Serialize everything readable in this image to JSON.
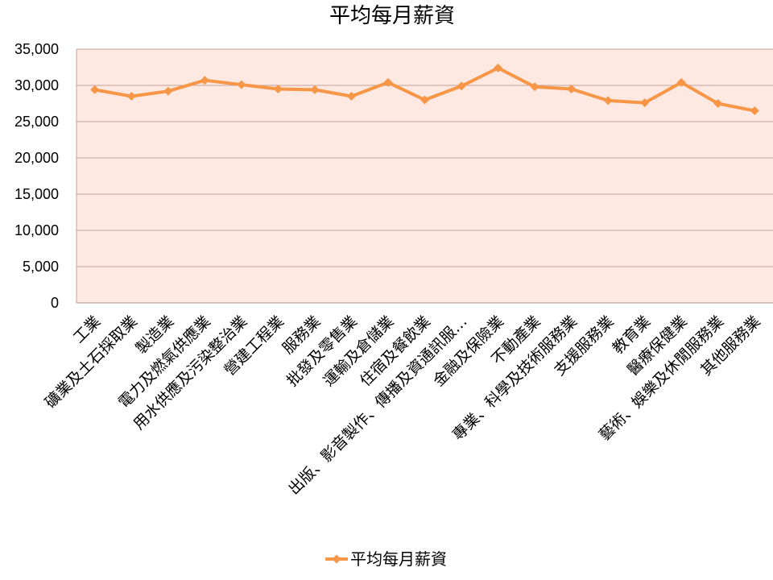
{
  "chart_data": {
    "type": "line",
    "title": "平均每月薪資",
    "xlabel": "",
    "ylabel": "",
    "ylim": [
      0,
      35000
    ],
    "yticks": [
      "0",
      "5,000",
      "10,000",
      "15,000",
      "20,000",
      "25,000",
      "30,000",
      "35,000"
    ],
    "grid": true,
    "legend_position": "bottom",
    "plot_background": "#fde9e2",
    "grid_color": "#c4a39a",
    "series_color": "#f79646",
    "categories": [
      "工業",
      "礦業及土石採取業",
      "製造業",
      "電力及燃氣供應業",
      "用水供應及污染整治業",
      "營建工程業",
      "服務業",
      "批發及零售業",
      "運輸及倉儲業",
      "住宿及餐飲業",
      "出版、影音製作、傳播及資通訊服…",
      "金融及保險業",
      "不動產業",
      "專業、科學及技術服務業",
      "支援服務業",
      "教育業",
      "醫療保健業",
      "藝術、娛樂及休閒服務業",
      "其他服務業"
    ],
    "series": [
      {
        "name": "平均每月薪資",
        "values": [
          29400,
          28500,
          29200,
          30700,
          30100,
          29500,
          29400,
          28500,
          30400,
          28000,
          29900,
          32400,
          29800,
          29500,
          27900,
          27600,
          30400,
          27500,
          26500
        ]
      }
    ]
  }
}
